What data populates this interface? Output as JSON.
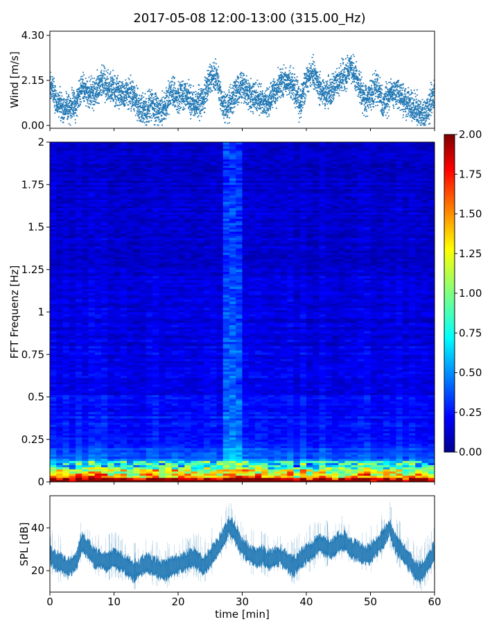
{
  "figure": {
    "title": "2017-05-08 12:00-13:00 (315.00_Hz)"
  },
  "chart_data": [
    {
      "id": "wind",
      "type": "scatter",
      "title": "2017-05-08 12:00-13:00 (315.00_Hz)",
      "xlabel": "",
      "ylabel": "Wind [m/s]",
      "xlim": [
        0,
        60
      ],
      "ylim": [
        0,
        4.3
      ],
      "yticks": [
        0,
        2.15,
        4.3
      ],
      "yticklabels": [
        "0.00",
        "2.15",
        "4.30"
      ],
      "xticks": [
        0,
        10,
        20,
        30,
        40,
        50,
        60
      ],
      "color": "#1f77b4",
      "trend": {
        "x": [
          0,
          1,
          2,
          3,
          4,
          5,
          6,
          7,
          8,
          9,
          10,
          11,
          12,
          13,
          14,
          15,
          16,
          17,
          18,
          19,
          20,
          21,
          22,
          23,
          24,
          25,
          26,
          27,
          28,
          29,
          30,
          31,
          32,
          33,
          34,
          35,
          36,
          37,
          38,
          39,
          40,
          41,
          42,
          43,
          44,
          45,
          46,
          47,
          48,
          49,
          50,
          51,
          52,
          53,
          54,
          55,
          56,
          57,
          58,
          59,
          60
        ],
        "y": [
          2.0,
          1.2,
          0.9,
          0.8,
          1.0,
          1.9,
          1.5,
          1.6,
          2.0,
          1.9,
          1.8,
          1.5,
          1.6,
          1.4,
          0.8,
          0.7,
          1.0,
          0.6,
          0.8,
          1.6,
          1.4,
          1.5,
          1.2,
          1.0,
          1.3,
          2.2,
          2.4,
          0.9,
          1.0,
          1.6,
          1.8,
          1.5,
          1.3,
          1.2,
          1.0,
          1.6,
          2.0,
          2.1,
          1.9,
          1.0,
          2.1,
          2.6,
          1.8,
          1.5,
          1.7,
          2.1,
          2.4,
          2.8,
          2.1,
          1.2,
          1.3,
          1.9,
          1.0,
          1.4,
          1.6,
          1.3,
          1.1,
          0.8,
          0.5,
          0.8,
          1.6
        ]
      },
      "points_per_minute": 90,
      "spread": 0.7
    },
    {
      "id": "spectrogram",
      "type": "heatmap",
      "xlabel": "",
      "ylabel": "FFT Frequenz [Hz]",
      "xlim": [
        0,
        60
      ],
      "ylim": [
        0,
        2
      ],
      "yticks": [
        0,
        0.25,
        0.5,
        0.75,
        1,
        1.25,
        1.5,
        1.75,
        2
      ],
      "yticklabels": [
        "0",
        "0.25",
        "0.5",
        "0.75",
        "1",
        "1.25",
        "1.5",
        "1.75",
        "2"
      ],
      "colormap": "jet",
      "colorbar": {
        "min": 0.0,
        "max": 2.0,
        "ticks": [
          "0.00",
          "0.25",
          "0.50",
          "0.75",
          "1.00",
          "1.25",
          "1.50",
          "1.75",
          "2.00"
        ]
      },
      "time_bins": 60,
      "freq_bins": 160,
      "background_level": 0.18,
      "low_frequency_profile": {
        "freq": [
          0.0,
          0.03,
          0.06,
          0.1,
          0.15,
          0.2,
          0.3,
          0.4,
          0.6,
          1.0,
          2.0
        ],
        "value": [
          1.85,
          1.5,
          1.0,
          0.6,
          0.42,
          0.36,
          0.3,
          0.26,
          0.22,
          0.18,
          0.14
        ]
      },
      "bright_column": {
        "x_range": [
          27.5,
          29.5
        ],
        "boost": 0.2
      }
    },
    {
      "id": "spl",
      "type": "area",
      "xlabel": "time [min]",
      "ylabel": "SPL [dB]",
      "xlim": [
        0,
        60
      ],
      "ylim": [
        10,
        55
      ],
      "yticks": [
        20,
        40
      ],
      "yticklabels": [
        "20",
        "40"
      ],
      "xticks": [
        0,
        10,
        20,
        30,
        40,
        50,
        60
      ],
      "xticklabels": [
        "0",
        "10",
        "20",
        "30",
        "40",
        "50",
        "60"
      ],
      "color": "#1f77b4",
      "trend": {
        "x": [
          0,
          1,
          2,
          3,
          4,
          5,
          6,
          7,
          8,
          9,
          10,
          11,
          12,
          13,
          14,
          15,
          16,
          17,
          18,
          19,
          20,
          21,
          22,
          23,
          24,
          25,
          26,
          27,
          28,
          29,
          30,
          31,
          32,
          33,
          34,
          35,
          36,
          37,
          38,
          39,
          40,
          41,
          42,
          43,
          44,
          45,
          46,
          47,
          48,
          49,
          50,
          51,
          52,
          53,
          54,
          55,
          56,
          57,
          58,
          59,
          60
        ],
        "y": [
          28,
          24,
          23,
          21,
          24,
          33,
          30,
          26,
          25,
          24,
          26,
          24,
          22,
          20,
          21,
          24,
          22,
          21,
          20,
          22,
          23,
          24,
          26,
          25,
          22,
          26,
          30,
          35,
          41,
          37,
          31,
          28,
          26,
          27,
          25,
          26,
          27,
          24,
          22,
          25,
          28,
          29,
          33,
          31,
          30,
          33,
          34,
          30,
          29,
          27,
          28,
          31,
          35,
          40,
          32,
          29,
          25,
          20,
          19,
          24,
          29
        ]
      },
      "envelope_half_width": 3.5
    }
  ]
}
